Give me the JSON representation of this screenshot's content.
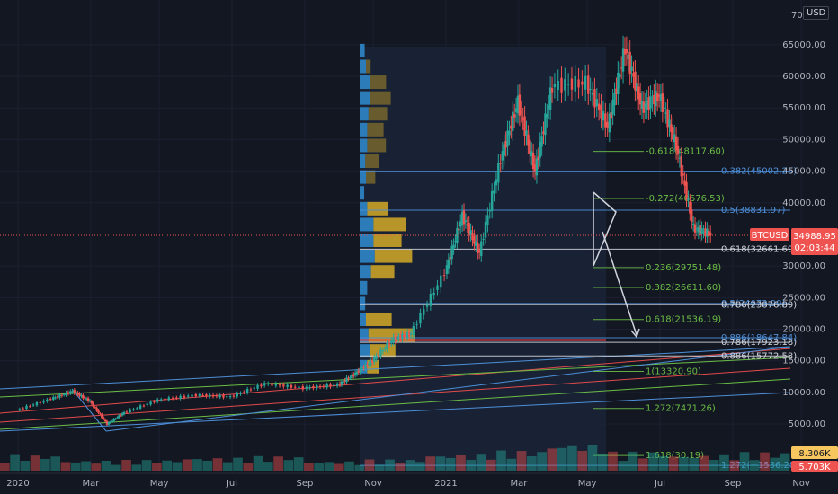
{
  "symbol_label": "BTCUSD",
  "currency": "USD",
  "last_price": "34988.95",
  "countdown": "02:03:44",
  "axis_cut_label": "70",
  "colors": {
    "background": "#131722",
    "grid": "#1c2030",
    "up": "#26a69a",
    "down": "#ef5350",
    "green_line": "#6bbd45",
    "blue_line": "#4d8fd8",
    "red_line": "#e24a4a",
    "white_line": "#d1d4dc",
    "vp_buy": "#2f86c9",
    "vp_sell": "#c9a227",
    "price_tag": "#ef5350",
    "volume_tag": "#f7c65f"
  },
  "chart_data": {
    "type": "candlestick",
    "x_tick_labels": [
      "2020",
      "Mar",
      "May",
      "Jul",
      "Sep",
      "Nov",
      "2021",
      "Mar",
      "May",
      "Jul",
      "Sep",
      "Nov"
    ],
    "y_tick_labels": [
      "65000.00",
      "60000.00",
      "55000.00",
      "50000.00",
      "45000.00",
      "40000.00",
      "30000.00",
      "25000.00",
      "20000.00",
      "15000.00",
      "10000.00",
      "5000.00"
    ],
    "ylim": [
      0,
      70000
    ],
    "series": [
      {
        "values": [
          [
            2020.0,
            7200
          ],
          [
            2020.08,
            9000
          ],
          [
            2020.13,
            10200
          ],
          [
            2020.17,
            8600
          ],
          [
            2020.21,
            5000
          ],
          [
            2020.25,
            6800
          ],
          [
            2020.33,
            8800
          ],
          [
            2020.42,
            9600
          ],
          [
            2020.5,
            9300
          ],
          [
            2020.58,
            11400
          ],
          [
            2020.67,
            10700
          ],
          [
            2020.75,
            11200
          ],
          [
            2020.79,
            13000
          ],
          [
            2020.83,
            15000
          ],
          [
            2020.88,
            18500
          ],
          [
            2020.92,
            19300
          ],
          [
            2021.0,
            29000
          ],
          [
            2021.04,
            38000
          ],
          [
            2021.08,
            32000
          ],
          [
            2021.13,
            47000
          ],
          [
            2021.17,
            56000
          ],
          [
            2021.21,
            45000
          ],
          [
            2021.25,
            58500
          ],
          [
            2021.33,
            59000
          ],
          [
            2021.38,
            52000
          ],
          [
            2021.42,
            64500
          ],
          [
            2021.46,
            55000
          ],
          [
            2021.5,
            57000
          ],
          [
            2021.54,
            49000
          ],
          [
            2021.58,
            36000
          ],
          [
            2021.62,
            34988.95
          ]
        ]
      },
      {
        "name": "Volume",
        "values": [
          7000,
          4500,
          4800,
          5800,
          6500,
          4200,
          5000,
          7200,
          9000,
          12000,
          8500,
          7000,
          8306
        ]
      }
    ],
    "volume_label": "8.306K",
    "volume_label_2": "5.703K",
    "fib_levels": [
      {
        "label": "-0.618(48117.60)",
        "color": "#6bbd45"
      },
      {
        "label": "0.382(45002.25)",
        "color": "#4d8fd8"
      },
      {
        "label": "-0.272(40676.53)",
        "color": "#6bbd45"
      },
      {
        "label": "0.5(38831.97)",
        "color": "#4d8fd8"
      },
      {
        "label": "0.618(32661.69)",
        "color": "#d1d4dc"
      },
      {
        "label": "0.236(29751.48)",
        "color": "#6bbd45"
      },
      {
        "label": "0.382(26611.60)",
        "color": "#6bbd45"
      },
      {
        "label": "0.5(24073.90)",
        "color": "#4d8fd8"
      },
      {
        "label": "0.786(23876.89)",
        "color": "#d1d4dc"
      },
      {
        "label": "0.618(21536.19)",
        "color": "#6bbd45"
      },
      {
        "label": "0.786(17923.18)",
        "color": "#d1d4dc"
      },
      {
        "label": "0.886(18647.84)",
        "color": "#4d8fd8"
      },
      {
        "label": "0.886(15772.58)",
        "color": "#d1d4dc"
      },
      {
        "label": "1(13320.90)",
        "color": "#6bbd45"
      },
      {
        "label": "1.272(7471.26)",
        "color": "#6bbd45"
      },
      {
        "label": "1.618(30.19)",
        "color": "#6bbd45"
      },
      {
        "label": "1.272(−1536.28)",
        "color": "#4d8fd8"
      }
    ],
    "volume_profile": [
      {
        "price": 64000,
        "buy": 0.2,
        "sell": 0.0
      },
      {
        "price": 61500,
        "buy": 0.25,
        "sell": 0.1
      },
      {
        "price": 59000,
        "buy": 0.4,
        "sell": 0.35
      },
      {
        "price": 56500,
        "buy": 0.4,
        "sell": 0.45
      },
      {
        "price": 54000,
        "buy": 0.35,
        "sell": 0.4
      },
      {
        "price": 51500,
        "buy": 0.3,
        "sell": 0.35
      },
      {
        "price": 49000,
        "buy": 0.3,
        "sell": 0.4
      },
      {
        "price": 46500,
        "buy": 0.22,
        "sell": 0.3
      },
      {
        "price": 44000,
        "buy": 0.25,
        "sell": 0.2
      },
      {
        "price": 41500,
        "buy": 0.18,
        "sell": 0.0
      },
      {
        "price": 39000,
        "buy": 0.3,
        "sell": 0.45
      },
      {
        "price": 36500,
        "buy": 0.55,
        "sell": 0.7
      },
      {
        "price": 34000,
        "buy": 0.55,
        "sell": 0.6
      },
      {
        "price": 31500,
        "buy": 0.6,
        "sell": 0.8
      },
      {
        "price": 29000,
        "buy": 0.45,
        "sell": 0.5
      },
      {
        "price": 26500,
        "buy": 0.3,
        "sell": 0.0
      },
      {
        "price": 24000,
        "buy": 0.22,
        "sell": 0.0
      },
      {
        "price": 21500,
        "buy": 0.25,
        "sell": 0.55
      },
      {
        "price": 19000,
        "buy": 0.35,
        "sell": 1.0
      },
      {
        "price": 16500,
        "buy": 0.4,
        "sell": 0.55
      },
      {
        "price": 14000,
        "buy": 0.3,
        "sell": 0.25
      }
    ]
  }
}
